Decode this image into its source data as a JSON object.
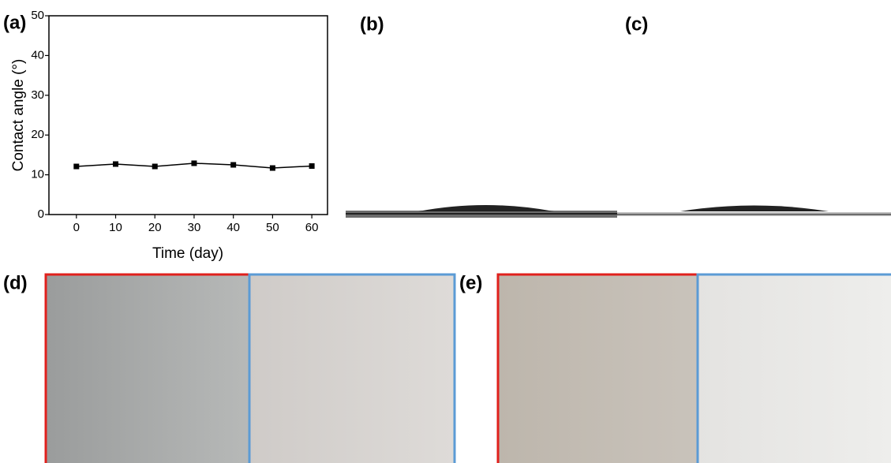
{
  "panels": {
    "a": "(a)",
    "b": "(b)",
    "c": "(c)",
    "d": "(d)",
    "e": "(e)"
  },
  "chart_data": {
    "type": "line",
    "x_label": "Time (day)",
    "y_label": "Contact angle (°)",
    "x": [
      0,
      10,
      20,
      30,
      40,
      50,
      60
    ],
    "series": [
      {
        "color": "#000000",
        "values": [
          12.1,
          12.7,
          12.1,
          12.9,
          12.5,
          11.7,
          12.2
        ]
      }
    ],
    "xlim": [
      -7,
      64
    ],
    "xticks": [
      0,
      10,
      20,
      30,
      40,
      50,
      60
    ],
    "ylim": [
      0,
      50
    ],
    "yticks": [
      0,
      10,
      20,
      30,
      40,
      50
    ]
  }
}
